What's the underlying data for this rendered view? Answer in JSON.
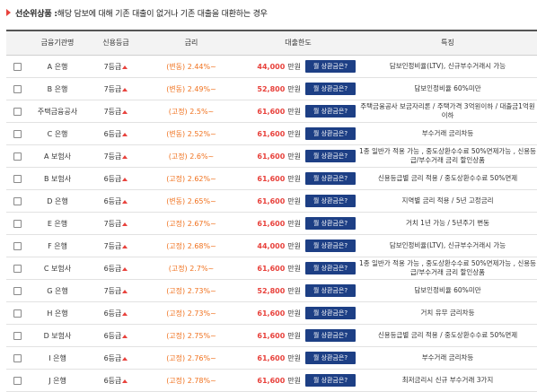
{
  "heading": {
    "prefix": "선순위상품 : ",
    "text": "해당 담보에 대해 기존 대출이 없거나 기존 대출을 대환하는 경우"
  },
  "columns": [
    "금융기관명",
    "신용등급",
    "금리",
    "대출한도",
    "특징"
  ],
  "unit_label": "만원",
  "button_label": "월 상환금은?",
  "colors": {
    "accent_red": "#e8423c",
    "rate_orange": "#f0721f",
    "button_navy": "#1d3f85"
  },
  "rows": [
    {
      "bank": "A 은행",
      "grade": "7등급",
      "rate": "(변동) 2.44%~",
      "limit": "44,000",
      "feature": "담보인정비율(LTV), 신규부수거래시 가능"
    },
    {
      "bank": "B 은행",
      "grade": "7등급",
      "rate": "(변동) 2.49%~",
      "limit": "52,800",
      "feature": "담보인정비율 60%미만"
    },
    {
      "bank": "주택금융공사",
      "grade": "7등급",
      "rate": "(고정) 2.5%~",
      "limit": "61,600",
      "feature": "주택금융공사 보금자리론 / 주택가격 3억원이하 / 대출금1억원이하"
    },
    {
      "bank": "C 은행",
      "grade": "6등급",
      "rate": "(변동) 2.52%~",
      "limit": "61,600",
      "feature": "부수거래 금리차등"
    },
    {
      "bank": "A 보험사",
      "grade": "7등급",
      "rate": "(고정) 2.6%~",
      "limit": "61,600",
      "feature": "1종 일반가 적용 가능 , 중도상환수수료 50%면제가능 , 신용등급/부수거래 금리 할인상품"
    },
    {
      "bank": "B 보험사",
      "grade": "6등급",
      "rate": "(고정) 2.62%~",
      "limit": "61,600",
      "feature": "신용등급별 금리 적용 / 중도상환수수료 50%면제"
    },
    {
      "bank": "D 은행",
      "grade": "6등급",
      "rate": "(변동) 2.65%~",
      "limit": "61,600",
      "feature": "지역별 금리 적용 / 5년 고정금리"
    },
    {
      "bank": "E 은행",
      "grade": "7등급",
      "rate": "(고정) 2.67%~",
      "limit": "61,600",
      "feature": "거치 1년 가능 / 5년주기 변동"
    },
    {
      "bank": "F 은행",
      "grade": "7등급",
      "rate": "(고정) 2.68%~",
      "limit": "44,000",
      "feature": "담보인정비율(LTV), 신규부수거래시 가능"
    },
    {
      "bank": "C 보험사",
      "grade": "6등급",
      "rate": "(고정) 2.7%~",
      "limit": "61,600",
      "feature": "1종 일반가 적용 가능 , 중도상환수수료 50%면제가능 , 신용등급/부수거래 금리 할인상품"
    },
    {
      "bank": "G 은행",
      "grade": "7등급",
      "rate": "(고정) 2.73%~",
      "limit": "52,800",
      "feature": "담보인정비율 60%미만"
    },
    {
      "bank": "H 은행",
      "grade": "6등급",
      "rate": "(고정) 2.73%~",
      "limit": "61,600",
      "feature": "거치 유무 금리차등"
    },
    {
      "bank": "D 보험사",
      "grade": "6등급",
      "rate": "(고정) 2.75%~",
      "limit": "61,600",
      "feature": "신용등급별 금리 적용 / 중도상환수수료 50%면제"
    },
    {
      "bank": "I 은행",
      "grade": "6등급",
      "rate": "(고정) 2.76%~",
      "limit": "61,600",
      "feature": "부수거래 금리차등"
    },
    {
      "bank": "J 은행",
      "grade": "6등급",
      "rate": "(고정) 2.78%~",
      "limit": "61,600",
      "feature": "최저금리시 신규 부수거래 3가지"
    }
  ]
}
